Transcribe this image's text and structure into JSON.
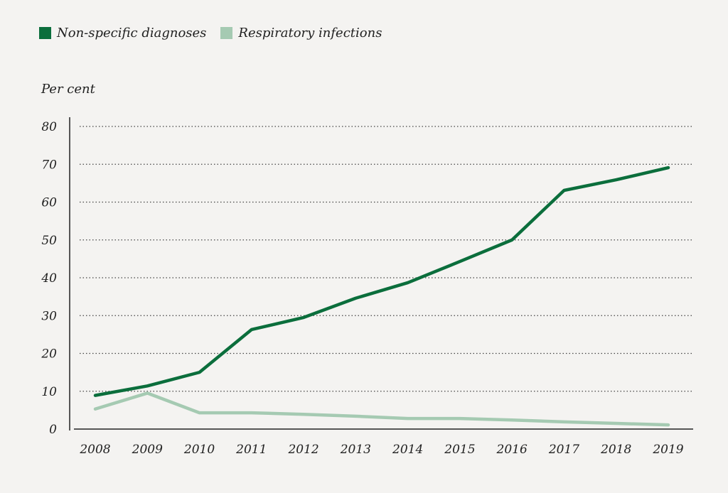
{
  "chart_data": {
    "type": "line",
    "ylabel": "Per cent",
    "ylim": [
      0,
      80
    ],
    "yticks": [
      0,
      10,
      20,
      30,
      40,
      50,
      60,
      70,
      80
    ],
    "grid": "horizontal dotted",
    "legend_position": "top-left",
    "categories": [
      "2008",
      "2009",
      "2010",
      "2011",
      "2012",
      "2013",
      "2014",
      "2015",
      "2016",
      "2017",
      "2018",
      "2019"
    ],
    "series": [
      {
        "name": "Non-specific diagnoses",
        "color": "#0b6e3c",
        "values": [
          8.9,
          11.4,
          15.0,
          26.3,
          29.5,
          34.6,
          38.7,
          44.3,
          50.0,
          63.1,
          65.9,
          69.1
        ]
      },
      {
        "name": "Respiratory infections",
        "color": "#a5cab2",
        "values": [
          5.3,
          9.5,
          4.3,
          4.3,
          3.9,
          3.4,
          2.8,
          2.8,
          2.4,
          1.9,
          1.5,
          1.1
        ]
      }
    ]
  }
}
